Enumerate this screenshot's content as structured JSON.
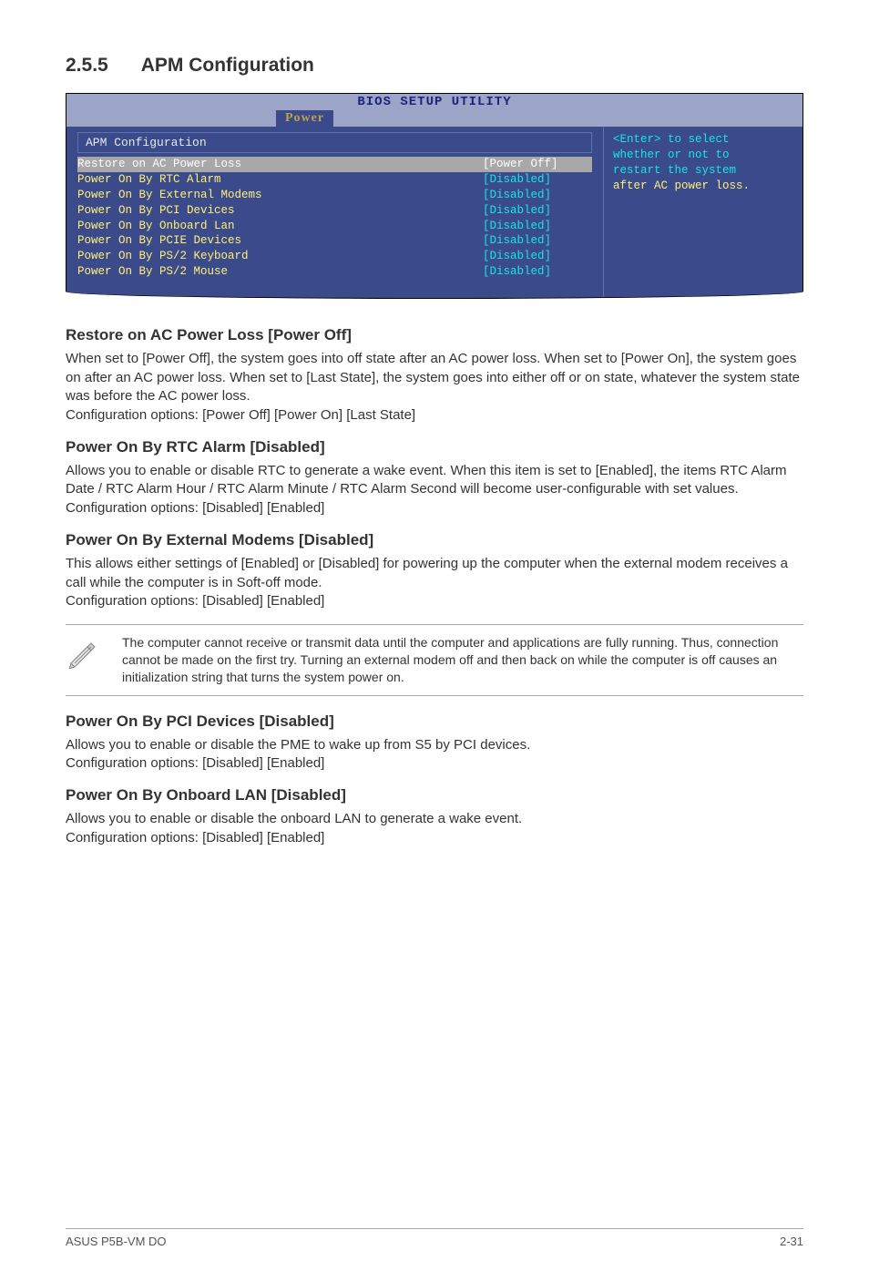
{
  "section": {
    "number": "2.5.5",
    "title": "APM Configuration"
  },
  "bios": {
    "header_title": "BIOS SETUP UTILITY",
    "tab": "Power",
    "sub_header": "APM Configuration",
    "rows": [
      {
        "label": "Restore on AC Power Loss",
        "value": "[Power Off]",
        "selected": true
      },
      {
        "label": "Power On By RTC Alarm",
        "value": "[Disabled]",
        "selected": false
      },
      {
        "label": "Power On By External Modems",
        "value": "[Disabled]",
        "selected": false
      },
      {
        "label": "Power On By PCI Devices",
        "value": "[Disabled]",
        "selected": false
      },
      {
        "label": "Power On By Onboard Lan",
        "value": "[Disabled]",
        "selected": false
      },
      {
        "label": "Power On By PCIE Devices",
        "value": "[Disabled]",
        "selected": false
      },
      {
        "label": "Power On By PS/2 Keyboard",
        "value": "[Disabled]",
        "selected": false
      },
      {
        "label": "Power On By PS/2 Mouse",
        "value": "[Disabled]",
        "selected": false
      }
    ],
    "help_line1": "<Enter> to select",
    "help_line2": "whether or not to",
    "help_line3": "restart the system",
    "help_line4": "after AC power loss.",
    "colors": {
      "bg": "#3b4a8a",
      "header_bg": "#9ca4c8",
      "header_fg": "#1a237e",
      "tab_fg": "#c2a14a",
      "cyan": "#16e6e6",
      "yellow": "#fff176",
      "selected_bg": "#a8a8a8"
    }
  },
  "subsections": [
    {
      "heading": "Restore on AC Power Loss [Power Off]",
      "paragraphs": [
        "When set to [Power Off], the system goes into off state after an AC power loss. When set to [Power On], the system goes on after an AC power loss. When set to [Last State], the system goes into either off or on state, whatever the system state was before the AC power loss.",
        "Configuration options: [Power Off] [Power On] [Last State]"
      ]
    },
    {
      "heading": "Power On By RTC Alarm [Disabled]",
      "paragraphs": [
        "Allows you to enable or disable RTC to generate a wake event. When this item is set to [Enabled], the items RTC Alarm Date / RTC Alarm Hour / RTC Alarm Minute / RTC Alarm Second will become user-configurable with set values.",
        "Configuration options: [Disabled] [Enabled]"
      ]
    },
    {
      "heading": "Power On By External Modems [Disabled]",
      "paragraphs": [
        "This allows either settings of [Enabled] or [Disabled] for powering up the computer when the external modem receives a call while the computer is in Soft-off mode.",
        "Configuration options: [Disabled] [Enabled]"
      ]
    }
  ],
  "note": {
    "text": "The computer cannot receive or transmit data until the computer and applications are fully running. Thus, connection cannot be made on the first try. Turning an external modem off and then back on while the computer is off causes an initialization string that turns the system power on."
  },
  "subsections2": [
    {
      "heading": "Power On By PCI Devices [Disabled]",
      "paragraphs": [
        "Allows you to enable or disable the PME to wake up from S5 by PCI devices.",
        "Configuration options: [Disabled] [Enabled]"
      ]
    },
    {
      "heading": "Power On By Onboard LAN [Disabled]",
      "paragraphs": [
        "Allows you to enable or disable the onboard LAN to generate a wake event.",
        "Configuration options: [Disabled] [Enabled]"
      ]
    }
  ],
  "footer": {
    "left": "ASUS P5B-VM DO",
    "right": "2-31"
  }
}
